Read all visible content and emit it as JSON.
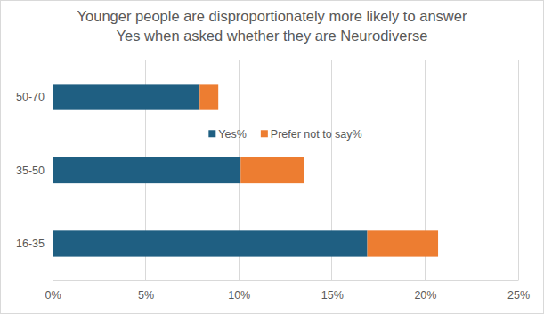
{
  "chart_data": {
    "type": "bar",
    "orientation": "horizontal",
    "stacked": true,
    "title": "Younger people are disproportionately more likely to answer\nYes when asked whether they are Neurodiverse",
    "categories": [
      "50-70",
      "35-50",
      "16-35"
    ],
    "series": [
      {
        "name": "Yes%",
        "color": "#1f5f82",
        "values": [
          7.9,
          10.1,
          16.9
        ]
      },
      {
        "name": "Prefer not to say%",
        "color": "#ed7d31",
        "values": [
          1.0,
          3.4,
          3.8
        ]
      }
    ],
    "xlim": [
      0,
      25
    ],
    "xticks": [
      {
        "value": 0,
        "label": "0%"
      },
      {
        "value": 5,
        "label": "5%"
      },
      {
        "value": 10,
        "label": "10%"
      },
      {
        "value": 15,
        "label": "15%"
      },
      {
        "value": 20,
        "label": "20%"
      },
      {
        "value": 25,
        "label": "25%"
      }
    ],
    "grid": true,
    "legend": "center"
  }
}
